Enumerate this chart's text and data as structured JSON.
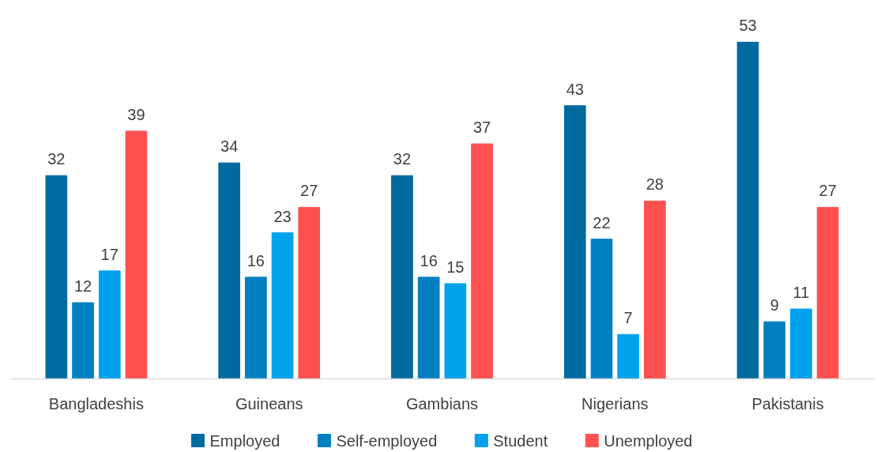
{
  "chart_data": {
    "type": "bar",
    "categories": [
      "Bangladeshis",
      "Guineans",
      "Gambians",
      "Nigerians",
      "Pakistanis"
    ],
    "series": [
      {
        "name": "Employed",
        "color": "#006a9f",
        "values": [
          32,
          34,
          32,
          43,
          53
        ]
      },
      {
        "name": "Self-employed",
        "color": "#0080c0",
        "values": [
          12,
          16,
          16,
          22,
          9
        ]
      },
      {
        "name": "Student",
        "color": "#00a2ed",
        "values": [
          17,
          23,
          15,
          7,
          11
        ]
      },
      {
        "name": "Unemployed",
        "color": "#ff5050",
        "values": [
          39,
          27,
          37,
          28,
          27
        ]
      }
    ],
    "data_labels": true,
    "legend": "bottom",
    "tick_labels": "x"
  }
}
